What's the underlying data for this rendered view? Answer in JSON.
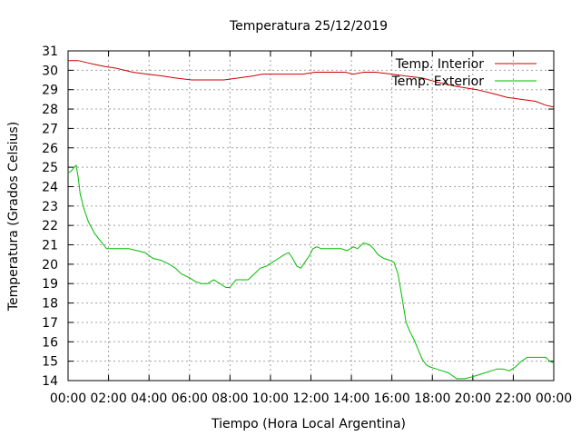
{
  "chart_data": {
    "type": "line",
    "title": "Temperatura 25/12/2019",
    "xlabel": "Tiempo (Hora Local Argentina)",
    "ylabel": "Temperatura (Grados Celsius)",
    "xlim": [
      0,
      24
    ],
    "ylim": [
      14,
      31
    ],
    "x_tick_labels": [
      "00:00",
      "02:00",
      "04:00",
      "06:00",
      "08:00",
      "10:00",
      "12:00",
      "14:00",
      "16:00",
      "18:00",
      "20:00",
      "22:00",
      "00:00"
    ],
    "y_tick_labels": [
      "14",
      "15",
      "16",
      "17",
      "18",
      "19",
      "20",
      "21",
      "22",
      "23",
      "24",
      "25",
      "26",
      "27",
      "28",
      "29",
      "30",
      "31"
    ],
    "grid": true,
    "legend_position": "top-right",
    "series": [
      {
        "name": "Temp. Interior",
        "color": "#cc0000",
        "x": [
          0,
          0.5,
          0.9,
          1.3,
          1.8,
          2.4,
          2.8,
          3.2,
          3.9,
          4.7,
          5.3,
          6.1,
          7.0,
          7.7,
          8.4,
          9.1,
          9.6,
          10.2,
          11.0,
          11.6,
          12.2,
          13.0,
          13.7,
          14.1,
          14.6,
          15.2,
          16.0,
          16.7,
          17.5,
          18.2,
          19.0,
          19.6,
          20.2,
          21.0,
          21.7,
          22.4,
          23.1,
          23.6,
          24
        ],
        "y": [
          30.5,
          30.5,
          30.4,
          30.3,
          30.2,
          30.1,
          30.0,
          29.9,
          29.8,
          29.7,
          29.6,
          29.5,
          29.5,
          29.5,
          29.6,
          29.7,
          29.8,
          29.8,
          29.8,
          29.8,
          29.9,
          29.9,
          29.9,
          29.8,
          29.9,
          29.9,
          29.8,
          29.7,
          29.6,
          29.4,
          29.2,
          29.1,
          29.0,
          28.8,
          28.6,
          28.5,
          28.4,
          28.2,
          28.1
        ]
      },
      {
        "name": "Temp. Exterior",
        "color": "#00bb00",
        "x": [
          0,
          0.15,
          0.3,
          0.4,
          0.5,
          0.6,
          0.8,
          1.0,
          1.3,
          1.6,
          1.9,
          2.2,
          2.6,
          3.0,
          3.4,
          3.8,
          4.2,
          4.6,
          5.0,
          5.3,
          5.6,
          6.0,
          6.3,
          6.6,
          6.9,
          7.2,
          7.5,
          7.8,
          8.0,
          8.3,
          8.6,
          8.9,
          9.2,
          9.5,
          9.8,
          10.1,
          10.4,
          10.7,
          10.9,
          11.1,
          11.3,
          11.5,
          11.7,
          11.9,
          12.1,
          12.3,
          12.5,
          12.7,
          12.9,
          13.2,
          13.5,
          13.8,
          14.1,
          14.3,
          14.6,
          14.9,
          15.1,
          15.3,
          15.6,
          15.9,
          16.1,
          16.3,
          16.5,
          16.7,
          16.9,
          17.1,
          17.3,
          17.5,
          17.7,
          17.9,
          18.2,
          18.5,
          18.8,
          19.2,
          19.6,
          20.0,
          20.3,
          20.6,
          20.9,
          21.2,
          21.5,
          21.8,
          22.1,
          22.4,
          22.7,
          23.0,
          23.3,
          23.6,
          23.8,
          24
        ],
        "y": [
          24.7,
          24.8,
          25.0,
          25.1,
          24.5,
          23.6,
          22.8,
          22.2,
          21.6,
          21.2,
          20.8,
          20.8,
          20.8,
          20.8,
          20.7,
          20.6,
          20.3,
          20.2,
          20.0,
          19.8,
          19.5,
          19.3,
          19.1,
          19.0,
          19.0,
          19.2,
          19.0,
          18.8,
          18.8,
          19.2,
          19.2,
          19.2,
          19.5,
          19.8,
          19.9,
          20.1,
          20.3,
          20.5,
          20.6,
          20.3,
          19.9,
          19.8,
          20.1,
          20.4,
          20.8,
          20.9,
          20.8,
          20.8,
          20.8,
          20.8,
          20.8,
          20.7,
          20.9,
          20.8,
          21.1,
          21.0,
          20.8,
          20.5,
          20.3,
          20.2,
          20.1,
          19.5,
          18.3,
          17.0,
          16.5,
          16.1,
          15.6,
          15.1,
          14.8,
          14.7,
          14.6,
          14.5,
          14.4,
          14.1,
          14.1,
          14.2,
          14.3,
          14.4,
          14.5,
          14.6,
          14.6,
          14.5,
          14.7,
          15.0,
          15.2,
          15.2,
          15.2,
          15.2,
          15.0,
          14.9
        ]
      }
    ]
  }
}
